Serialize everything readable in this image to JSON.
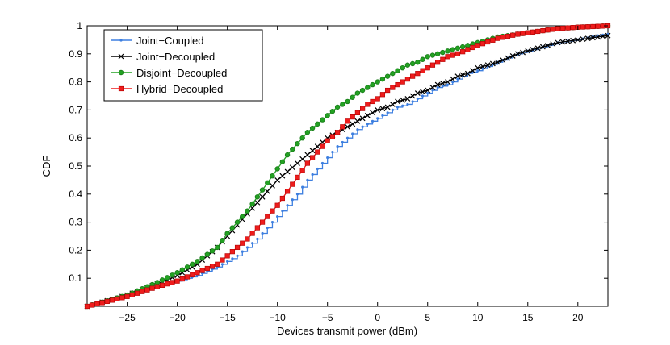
{
  "chart_data": {
    "type": "line",
    "title": "",
    "xlabel": "Devices transmit power (dBm)",
    "ylabel": "CDF",
    "xlim": [
      -29,
      23
    ],
    "ylim": [
      0,
      1
    ],
    "xticks": [
      -25,
      -20,
      -15,
      -10,
      -5,
      0,
      5,
      10,
      15,
      20
    ],
    "yticks": [
      0.1,
      0.2,
      0.3,
      0.4,
      0.5,
      0.6,
      0.7,
      0.8,
      0.9,
      1
    ],
    "grid": false,
    "legend_position": "top-left",
    "series": [
      {
        "name": "Joint−Coupled",
        "color": "#3d7fe0",
        "marker": "dot",
        "x": [
          -29,
          -25,
          -22,
          -20,
          -18,
          -16,
          -15,
          -14,
          -13,
          -12,
          -11,
          -10,
          -9,
          -8,
          -7,
          -6,
          -5,
          -4,
          -3,
          -2,
          -1,
          0,
          1,
          2,
          3,
          4,
          5,
          6,
          7,
          8,
          9,
          10,
          12,
          14,
          16,
          18,
          20,
          22,
          23
        ],
        "y": [
          0.0,
          0.035,
          0.07,
          0.09,
          0.11,
          0.14,
          0.16,
          0.18,
          0.21,
          0.24,
          0.28,
          0.32,
          0.36,
          0.4,
          0.45,
          0.49,
          0.53,
          0.57,
          0.6,
          0.63,
          0.65,
          0.67,
          0.69,
          0.71,
          0.72,
          0.74,
          0.76,
          0.78,
          0.79,
          0.81,
          0.83,
          0.84,
          0.87,
          0.9,
          0.92,
          0.94,
          0.95,
          0.965,
          0.97
        ]
      },
      {
        "name": "Joint−Decoupled",
        "color": "#000000",
        "marker": "x",
        "x": [
          -29,
          -25,
          -22,
          -20,
          -18,
          -16,
          -15,
          -14,
          -13,
          -12,
          -11,
          -10,
          -9,
          -8,
          -7,
          -6,
          -5,
          -4,
          -3,
          -2,
          -1,
          0,
          1,
          2,
          3,
          4,
          5,
          6,
          7,
          8,
          9,
          10,
          12,
          14,
          16,
          18,
          20,
          22,
          23
        ],
        "y": [
          0.0,
          0.04,
          0.08,
          0.11,
          0.15,
          0.21,
          0.25,
          0.29,
          0.33,
          0.37,
          0.41,
          0.45,
          0.48,
          0.51,
          0.54,
          0.57,
          0.6,
          0.62,
          0.64,
          0.66,
          0.68,
          0.7,
          0.71,
          0.73,
          0.74,
          0.76,
          0.77,
          0.79,
          0.8,
          0.82,
          0.83,
          0.85,
          0.87,
          0.9,
          0.92,
          0.94,
          0.95,
          0.96,
          0.965
        ]
      },
      {
        "name": "Disjoint−Decoupled",
        "color": "#22a222",
        "marker": "circle",
        "x": [
          -29,
          -25,
          -22,
          -20,
          -18,
          -16,
          -15,
          -14,
          -13,
          -12,
          -11,
          -10,
          -9,
          -8,
          -7,
          -6,
          -5,
          -4,
          -3,
          -2,
          -1,
          0,
          1,
          2,
          3,
          4,
          5,
          6,
          7,
          8,
          10,
          12,
          14,
          16,
          18,
          20,
          22,
          23
        ],
        "y": [
          0.0,
          0.04,
          0.085,
          0.12,
          0.16,
          0.21,
          0.26,
          0.3,
          0.34,
          0.39,
          0.44,
          0.49,
          0.54,
          0.58,
          0.62,
          0.65,
          0.68,
          0.71,
          0.73,
          0.76,
          0.78,
          0.8,
          0.82,
          0.84,
          0.86,
          0.87,
          0.89,
          0.9,
          0.91,
          0.92,
          0.94,
          0.96,
          0.97,
          0.98,
          0.99,
          0.995,
          0.998,
          1.0
        ]
      },
      {
        "name": "Hybrid−Decoupled",
        "color": "#ee1c1c",
        "marker": "square",
        "x": [
          -29,
          -25,
          -22,
          -20,
          -18,
          -16,
          -15,
          -14,
          -13,
          -12,
          -11,
          -10,
          -9,
          -8,
          -7,
          -6,
          -5,
          -4,
          -3,
          -2,
          -1,
          0,
          1,
          2,
          3,
          4,
          5,
          6,
          7,
          8,
          10,
          12,
          14,
          16,
          18,
          20,
          22,
          23
        ],
        "y": [
          0.0,
          0.035,
          0.07,
          0.09,
          0.12,
          0.15,
          0.18,
          0.21,
          0.24,
          0.28,
          0.32,
          0.36,
          0.41,
          0.46,
          0.51,
          0.55,
          0.59,
          0.62,
          0.66,
          0.69,
          0.72,
          0.74,
          0.77,
          0.79,
          0.81,
          0.83,
          0.85,
          0.87,
          0.89,
          0.9,
          0.93,
          0.955,
          0.97,
          0.98,
          0.99,
          0.995,
          0.998,
          1.0
        ]
      }
    ]
  }
}
